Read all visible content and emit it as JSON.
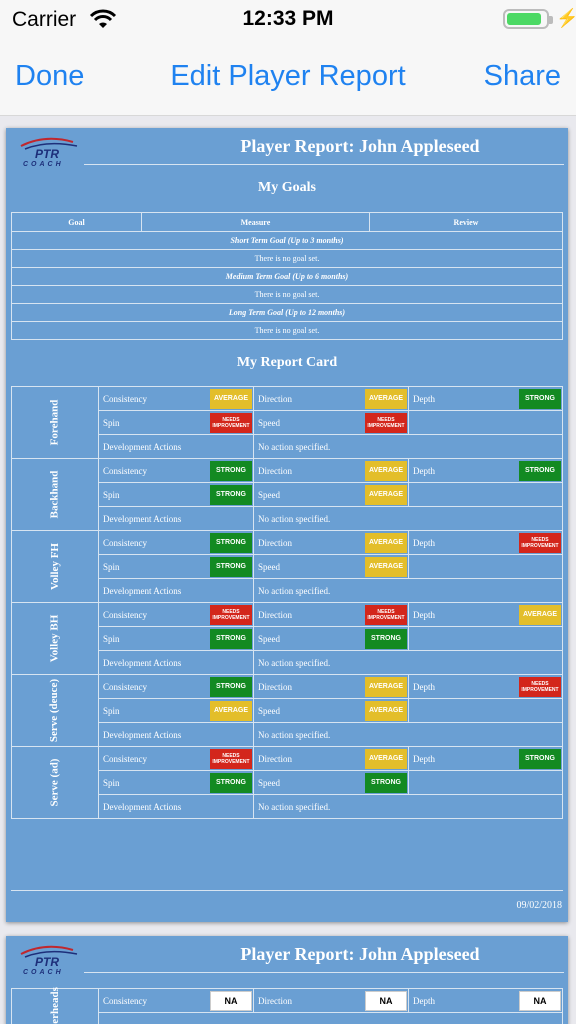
{
  "status_bar": {
    "carrier": "Carrier",
    "time": "12:33 PM"
  },
  "nav": {
    "done_label": "Done",
    "title": "Edit Player Report",
    "share_label": "Share"
  },
  "colors": {
    "strong": "#138a22",
    "average": "#e3be2a",
    "needs": "#d3261b",
    "na": "#ffffff"
  },
  "report": {
    "title": "Player Report: John Appleseed",
    "logo_text": "PTR COACH",
    "goals_heading": "My Goals",
    "goal_columns": [
      "Goal",
      "Measure",
      "Review"
    ],
    "goal_sections": [
      {
        "label": "Short Term Goal (Up to 3 months)",
        "text": "There is no goal set."
      },
      {
        "label": "Medium Term Goal (Up to 6 months)",
        "text": "There is no goal set."
      },
      {
        "label": "Long Term Goal (Up to 12 months)",
        "text": "There is no goal set."
      }
    ],
    "report_card_heading": "My Report Card",
    "row_labels": {
      "consistency": "Consistency",
      "direction": "Direction",
      "depth": "Depth",
      "spin": "Spin",
      "speed": "Speed",
      "dev": "Development Actions"
    },
    "no_action": "No action specified.",
    "categories": [
      {
        "name": "Forehand",
        "consistency": "average",
        "direction": "average",
        "depth": "strong",
        "spin": "needs",
        "speed": "needs"
      },
      {
        "name": "Backhand",
        "consistency": "strong",
        "direction": "average",
        "depth": "strong",
        "spin": "strong",
        "speed": "average"
      },
      {
        "name": "Volley FH",
        "consistency": "strong",
        "direction": "average",
        "depth": "needs",
        "spin": "strong",
        "speed": "average"
      },
      {
        "name": "Volley BH",
        "consistency": "needs",
        "direction": "needs",
        "depth": "average",
        "spin": "strong",
        "speed": "strong"
      },
      {
        "name": "Serve (deuce)",
        "consistency": "strong",
        "direction": "average",
        "depth": "needs",
        "spin": "average",
        "speed": "average"
      },
      {
        "name": "Serve (ad)",
        "consistency": "needs",
        "direction": "average",
        "depth": "strong",
        "spin": "strong",
        "speed": "strong"
      }
    ],
    "rating_labels": {
      "strong": "STRONG",
      "average": "AVERAGE",
      "needs": "NEEDS IMPROVEMENT",
      "na": "NA"
    },
    "date": "09/02/2018"
  },
  "page2": {
    "title": "Player Report: John Appleseed",
    "partial_category": "Overheads",
    "row": {
      "consistency": "na",
      "direction": "na",
      "depth": "na"
    }
  }
}
